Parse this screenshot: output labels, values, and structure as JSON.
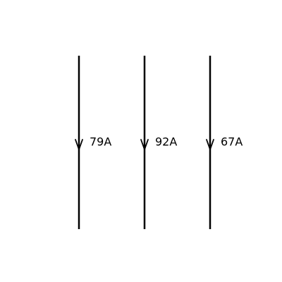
{
  "diagram": {
    "colors": {
      "background": "#ffffff",
      "wire": "#000000",
      "label": "#000000"
    },
    "wires": [
      {
        "label": "79A",
        "direction": "down",
        "arrow_icon": "arrow-down-icon"
      },
      {
        "label": "92A",
        "direction": "down",
        "arrow_icon": "arrow-down-icon"
      },
      {
        "label": "67A",
        "direction": "down",
        "arrow_icon": "arrow-down-icon"
      }
    ]
  }
}
